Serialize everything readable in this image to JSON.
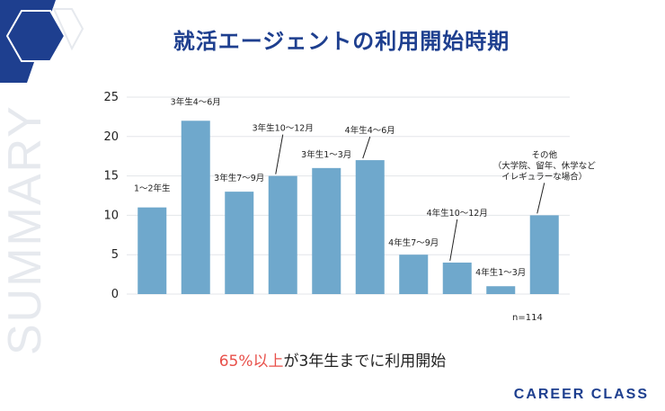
{
  "title": "就活エージェントの利用開始時期",
  "side_word": "SUMMARY",
  "summary": {
    "highlight": "65%以上",
    "rest": "が3年生までに利用開始"
  },
  "brand": "CAREER CLASS",
  "note": "n=114",
  "colors": {
    "bar": "#6fa8cc",
    "navy": "#1e3f8f",
    "accent": "#e8504a"
  },
  "chart_data": {
    "type": "bar",
    "title": "就活エージェントの利用開始時期",
    "categories": [
      "1〜2年生",
      "3年生4〜6月",
      "3年生7〜9月",
      "3年生10〜12月",
      "3年生1〜3月",
      "4年生4〜6月",
      "4年生7〜9月",
      "4年生10〜12月",
      "4年生1〜3月",
      "その他（大学院、留年、休学などイレギュラーな場合）"
    ],
    "values": [
      11,
      22,
      13,
      15,
      16,
      17,
      5,
      4,
      1,
      10
    ],
    "label_lines": [
      [
        "1〜2年生"
      ],
      [
        "3年生4〜6月"
      ],
      [
        "3年生7〜9月"
      ],
      [
        "3年生10〜12月"
      ],
      [
        "3年生1〜3月"
      ],
      [
        "4年生4〜6月"
      ],
      [
        "4年生7〜9月"
      ],
      [
        "4年生10〜12月"
      ],
      [
        "4年生1〜3月"
      ],
      [
        "その他",
        "（大学院、留年、休学など",
        "イレギュラーな場合）"
      ]
    ],
    "yticks": [
      0,
      5,
      10,
      15,
      20,
      25
    ],
    "ylim": [
      0,
      25
    ],
    "xlabel": "",
    "ylabel": ""
  }
}
